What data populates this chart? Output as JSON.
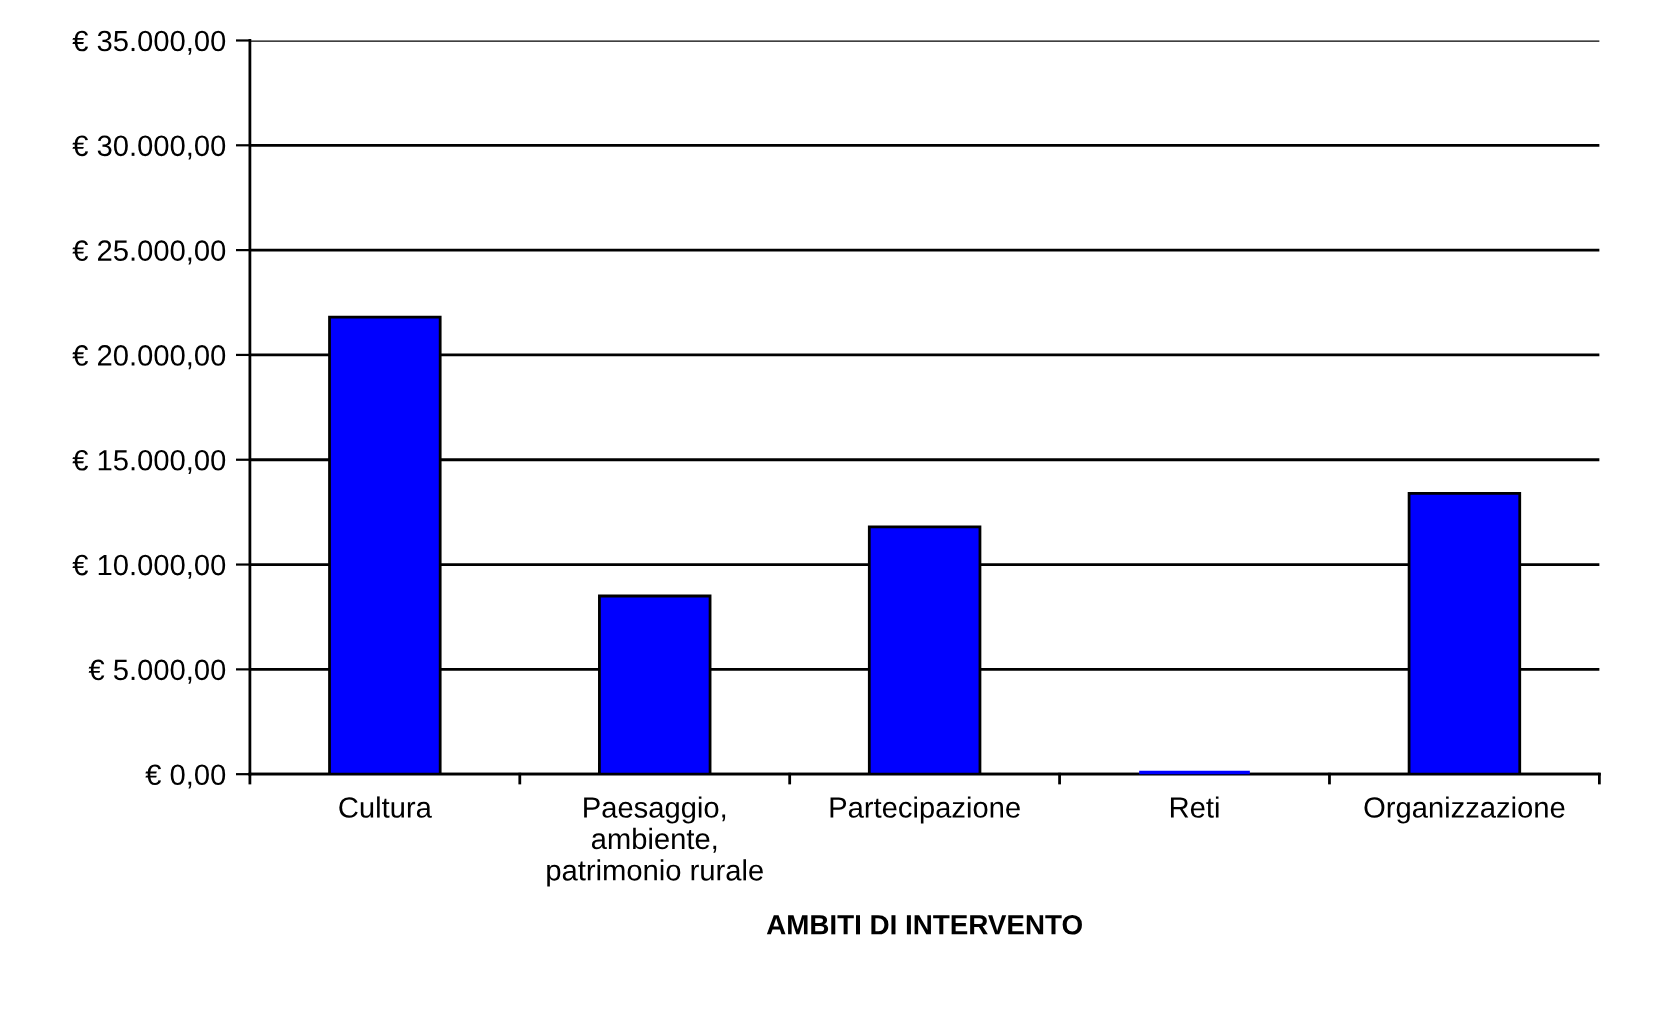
{
  "chart_data": {
    "type": "bar",
    "xlabel": "AMBITI DI INTERVENTO",
    "categories": [
      "Cultura",
      "Paesaggio,\nambiente,\npatrimonio rurale",
      "Partecipazione",
      "Reti",
      "Organizzazione"
    ],
    "values": [
      21800,
      8500,
      11800,
      0,
      13400
    ],
    "color": "#0000ff",
    "ylim": [
      0,
      35000
    ],
    "yticks": [
      {
        "value": 0,
        "label": "€ 0,00"
      },
      {
        "value": 5000,
        "label": "€ 5.000,00"
      },
      {
        "value": 10000,
        "label": "€ 10.000,00"
      },
      {
        "value": 15000,
        "label": "€ 15.000,00"
      },
      {
        "value": 20000,
        "label": "€ 20.000,00"
      },
      {
        "value": 25000,
        "label": "€ 25.000,00"
      },
      {
        "value": 30000,
        "label": "€ 30.000,00"
      },
      {
        "value": 35000,
        "label": "€ 35.000,00"
      }
    ],
    "grid": "y"
  }
}
